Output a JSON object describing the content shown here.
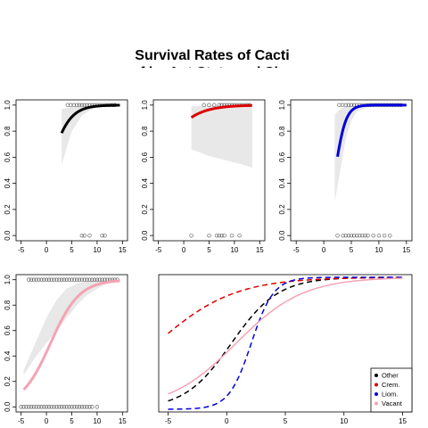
{
  "chart_data": {
    "title_lines": [
      "Survival Rates of Cacti",
      "of by Ant State and Size"
    ],
    "panels": [
      {
        "id": "other",
        "type": "scatter+line",
        "color": "#000000",
        "xlim": [
          -6,
          16
        ],
        "ylim": [
          -0.04,
          1.04
        ],
        "xticks": [
          -5,
          0,
          5,
          10,
          15
        ],
        "yticks": [
          0.0,
          0.2,
          0.4,
          0.6,
          0.8,
          1.0
        ],
        "band_x": [
          3,
          5,
          7,
          9,
          11,
          13,
          14.5
        ],
        "band_upper": [
          0.97,
          0.985,
          0.99,
          0.995,
          0.998,
          0.999,
          1.0
        ],
        "band_lower": [
          0.54,
          0.8,
          0.92,
          0.97,
          0.985,
          0.99,
          0.99
        ],
        "curve_logit": [
          -0.2,
          0.5
        ],
        "curve_x": [
          3,
          14.5
        ],
        "points_alive_x": [
          4.2,
          4.8,
          5.4,
          6,
          6.5,
          7,
          7.5,
          8,
          8.5,
          9,
          9.5,
          10,
          10.5,
          11,
          11.5,
          12,
          12.5,
          13,
          13.5
        ],
        "points_dead_x": [
          7,
          7.5,
          8.5,
          11,
          11.5
        ]
      },
      {
        "id": "crem",
        "type": "scatter+line",
        "color": "#dd0000",
        "xlim": [
          -6,
          16
        ],
        "ylim": [
          -0.04,
          1.04
        ],
        "xticks": [
          -5,
          0,
          5,
          10,
          15
        ],
        "yticks": [
          0.0,
          0.2,
          0.4,
          0.6,
          0.8,
          1.0
        ],
        "band_x": [
          1.5,
          3,
          5,
          7,
          9,
          11,
          13.5
        ],
        "band_upper": [
          0.99,
          0.995,
          0.998,
          0.999,
          1.0,
          1.0,
          1.0
        ],
        "band_lower": [
          0.66,
          0.64,
          0.61,
          0.59,
          0.57,
          0.55,
          0.52
        ],
        "curve_logit": [
          1.8,
          0.3
        ],
        "curve_x": [
          1.5,
          13.5
        ],
        "points_alive_x": [
          4,
          5,
          6,
          7,
          7.5,
          8,
          8.5,
          9,
          9.5,
          10,
          10.5,
          11,
          11.5,
          12,
          12.5,
          13
        ],
        "points_dead_x": [
          1.5,
          5,
          6.5,
          7,
          7.5,
          8,
          9.5,
          11
        ]
      },
      {
        "id": "liom",
        "type": "scatter+line",
        "color": "#0000dd",
        "xlim": [
          -6,
          16
        ],
        "ylim": [
          -0.04,
          1.04
        ],
        "xticks": [
          -5,
          0,
          5,
          10,
          15
        ],
        "yticks": [
          0.0,
          0.2,
          0.4,
          0.6,
          0.8,
          1.0
        ],
        "band_x": [
          2,
          3,
          4,
          5,
          6,
          8,
          10,
          13,
          15
        ],
        "band_upper": [
          0.93,
          0.97,
          0.99,
          0.996,
          0.999,
          1.0,
          1.0,
          1.0,
          1.0
        ],
        "band_lower": [
          0.26,
          0.5,
          0.74,
          0.88,
          0.95,
          0.985,
          0.995,
          1.0,
          1.0
        ],
        "curve_logit": [
          -2.2,
          1.05
        ],
        "curve_x": [
          2.5,
          15
        ],
        "points_alive_x": [
          2.8,
          3.4,
          4,
          4.5,
          5,
          5.5,
          6,
          6.5,
          7,
          7.5,
          8,
          8.5,
          9,
          9.5,
          10,
          10.5,
          11,
          11.5,
          12,
          12.5,
          13,
          13.5,
          14
        ],
        "points_dead_x": [
          2.5,
          3.5,
          4,
          4.5,
          5,
          5.5,
          6,
          6.5,
          7,
          7.5,
          8,
          9,
          10,
          11,
          12
        ]
      },
      {
        "id": "vacant",
        "type": "scatter+line",
        "color": "#f4a3b4",
        "xlim": [
          -6,
          16
        ],
        "ylim": [
          -0.04,
          1.04
        ],
        "xticks": [
          -5,
          0,
          5,
          10,
          15
        ],
        "yticks": [
          0.0,
          0.2,
          0.4,
          0.6,
          0.8,
          1.0
        ],
        "band_x": [
          -4.5,
          -2,
          0,
          2,
          4,
          6,
          8,
          10,
          12,
          14.5
        ],
        "band_upper": [
          0.29,
          0.52,
          0.7,
          0.84,
          0.93,
          0.97,
          0.99,
          0.995,
          1.0,
          1.0
        ],
        "band_lower": [
          0.25,
          0.4,
          0.5,
          0.6,
          0.7,
          0.8,
          0.88,
          0.93,
          0.97,
          0.99
        ],
        "curve_logit": [
          -0.28,
          0.35
        ],
        "curve_x": [
          -4.5,
          14.5
        ],
        "points_alive_x": [
          -3.5,
          -3,
          -2.5,
          -2,
          -1.5,
          -1,
          -0.5,
          0,
          0.5,
          1,
          1.5,
          2,
          2.5,
          3,
          3.5,
          4,
          4.5,
          5,
          5.5,
          6,
          6.5,
          7,
          7.5,
          8,
          8.5,
          9,
          9.5,
          10,
          10.5,
          11,
          11.5,
          12,
          12.5,
          13,
          13.5,
          14
        ],
        "points_dead_x": [
          -5,
          -4.5,
          -4,
          -3.5,
          -3,
          -2.5,
          -2,
          -1.5,
          -1,
          -0.5,
          0,
          0.5,
          1,
          1.5,
          2,
          2.5,
          3,
          3.5,
          4,
          4.5,
          5,
          5.5,
          6,
          6.5,
          7,
          7.5,
          8,
          8.5,
          9,
          10
        ]
      },
      {
        "id": "combined",
        "type": "line",
        "xlim": [
          -5.8,
          15.8
        ],
        "ylim": [
          -0.02,
          1.02
        ],
        "xticks": [
          -5,
          0,
          5,
          10,
          15
        ],
        "yticks": [],
        "series": [
          {
            "name": "Other",
            "color": "#000000",
            "logit": [
              -0.2,
              0.5
            ],
            "x": [
              -5,
              15
            ]
          },
          {
            "name": "Crem.",
            "color": "#dd0000",
            "logit": [
              1.8,
              0.3
            ],
            "x": [
              -5,
              15
            ]
          },
          {
            "name": "Liom.",
            "color": "#0000dd",
            "logit": [
              -2.2,
              1.05
            ],
            "x": [
              -5,
              15
            ]
          },
          {
            "name": "Vacant",
            "color": "#f4a3b4",
            "logit": [
              -0.28,
              0.35
            ],
            "x": [
              -5,
              15
            ],
            "solid": true
          }
        ],
        "legend": "bottom-right"
      }
    ]
  }
}
